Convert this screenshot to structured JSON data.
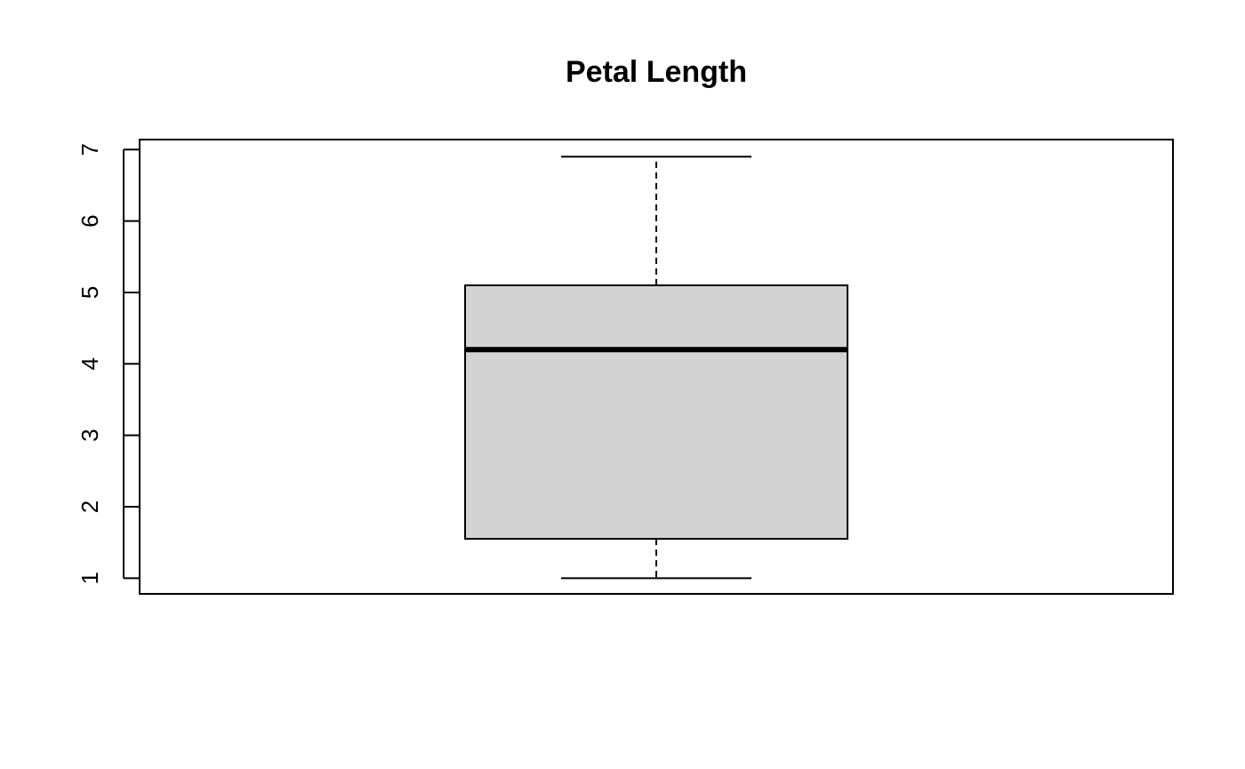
{
  "chart_data": {
    "type": "box",
    "title": "Petal Length",
    "xlabel": "",
    "ylabel": "",
    "ylim": [
      0.78,
      7.14
    ],
    "yticks": [
      1,
      2,
      3,
      4,
      5,
      6,
      7
    ],
    "grid": false,
    "box": {
      "min": 1.0,
      "q1": 1.55,
      "median": 4.2,
      "q3": 5.1,
      "max": 6.9,
      "fill": "#d3d3d3",
      "stroke": "#000000"
    }
  }
}
